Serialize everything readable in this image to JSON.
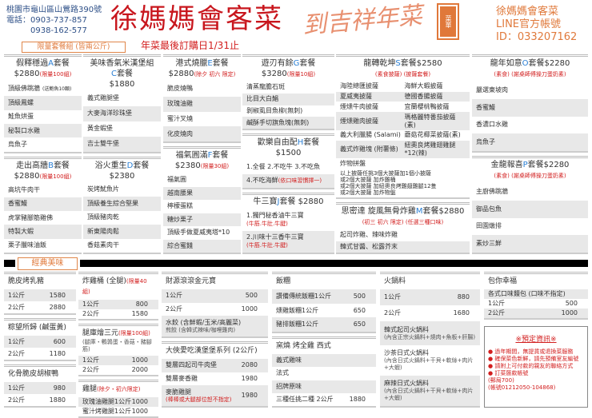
{
  "header": {
    "address": "桃園市龜山區山鶯路390號",
    "phone_label": "電話：0903-737-857",
    "phone2": "0938-162-577",
    "brand": "徐媽媽會客菜",
    "deadline": "年菜最後訂購日1/31止",
    "calligraphy": "到吉祥年菜",
    "stamp": "菜單",
    "line_name": "徐媽媽會客菜",
    "line_label": "LINE官方帳號",
    "line_id": "ID：033207162",
    "set_tag": "限量套餐組 (皆兩公斤)",
    "classic_tag": "經典美味"
  },
  "colors": {
    "brand_red": "#c8161d",
    "letter_blue": "#2a7fd4",
    "accent_orange": "#e07a3c"
  },
  "top_columns": [
    [
      {
        "pre": "假釋穩過",
        "letter": "A",
        "post": "套餐",
        "price": "$2880",
        "note": "(限量100組)",
        "rows": [
          [
            "頂級佛跳牆",
            "(送鮑魚10顆)"
          ],
          [
            "頂級鳳螺"
          ],
          [
            "鮭魚烘蛋"
          ],
          [
            "秘製口水雞"
          ],
          [
            "烏魚子"
          ]
        ]
      },
      {
        "pre": "走出高牆",
        "letter": "B",
        "post": "套餐",
        "price": "$2880",
        "note": "(限量100組)",
        "rows": [
          [
            "高坑牛肉干"
          ],
          [
            "香蜜鰻"
          ],
          [
            "虎掌豬腳筋雞佛"
          ],
          [
            "特製大蝦"
          ],
          [
            "栗子臘味油飯"
          ]
        ]
      }
    ],
    [
      {
        "top": "美味香氣米漢堡組",
        "pre": "",
        "letter": "C",
        "post": "套餐",
        "price": "$1880",
        "rows": [
          [
            "義式雞腿堡"
          ],
          [
            "大麥海洋珍珠堡"
          ],
          [
            "黃金蝦堡"
          ],
          [
            "吉士雙牛堡"
          ]
        ]
      },
      {
        "pre": "浴火重生",
        "letter": "D",
        "post": "套餐",
        "price": "$2380",
        "rows": [
          [
            "炭烤魷魚片"
          ],
          [
            "頂級養生綜合堅果"
          ],
          [
            "頂級豬肉乾"
          ],
          [
            "新東陽肉鬆"
          ],
          [
            "香菇素肉干"
          ]
        ]
      }
    ],
    [
      {
        "pre": "港式燒臘",
        "letter": "E",
        "post": "套餐",
        "price": "$2880",
        "note": "(除夕 初六 限定)",
        "rows": [
          [
            "脆皮燒鴨"
          ],
          [
            "玫瑰油雞"
          ],
          [
            "蜜汁叉燒"
          ],
          [
            "化皮燒肉"
          ]
        ]
      },
      {
        "pre": "福氣圓滿",
        "letter": "F",
        "post": "套餐",
        "price": "$2380",
        "note": "(限量30組)",
        "rows": [
          [
            "福氣圓"
          ],
          [
            "越南腰果"
          ],
          [
            "檸檬蛋糕"
          ],
          [
            "糖炒栗子"
          ],
          [
            "頂級手做夏威夷塔*10"
          ],
          [
            "綜合蜜餞"
          ]
        ]
      }
    ],
    [
      {
        "pre": "遊刃有餘",
        "letter": "G",
        "post": "套餐",
        "price": "$3280",
        "note": "(限量10組)",
        "rows": [
          [
            "清蒸龍膽石斑"
          ],
          [
            "比目大白鯧"
          ],
          [
            "剝椒虱目魚柳(無刺)"
          ],
          [
            "鹹酥手切旗魚塊(無刺)"
          ]
        ]
      },
      {
        "pre": "歡樂自由配",
        "letter": "H",
        "post": "套餐",
        "price": "$1500",
        "rows": [
          [
            "1.全餐 2.不吃牛 3.不吃魚"
          ],
          [
            "4.不吃海鮮",
            "(依口味習慣擇一)"
          ]
        ]
      },
      {
        "pre": "牛三寶",
        "letter": "J",
        "post": "套餐 $2880",
        "rows": [
          [
            "1.獨門秘香滷牛三寶",
            "(牛筋.牛肚.牛腱)"
          ],
          [
            "2.川味十三香牛三寶",
            "(牛筋.牛肚.牛腱)"
          ]
        ]
      }
    ],
    [
      {
        "pre": "龍轉乾坤",
        "letter": "S",
        "post": "套餐$2580",
        "note": "(素食披薩) (披薩套餐)",
        "rows": [
          [
            "海陸總匯披薩",
            "海鮮大蝦披薩"
          ],
          [
            "夏威夷披薩",
            "德國香腸披薩"
          ],
          [
            "煙燻牛肉披薩",
            "宜蘭櫻桃鴨披薩"
          ],
          [
            "煙燻雞肉披薩",
            "瑪格麗特番茄披薩(素)"
          ],
          [
            "義大利臘腸 (Salami)",
            "蘑菇花椰菜披薩(素)"
          ],
          [
            "義式炸雞塊 (附薯條)",
            "紐奧良烤雞翅雞腿*12(辣)"
          ],
          [
            "炸物拼盤"
          ]
        ],
        "text": [
          "以上披薩任挑3個大披薩加1個小披薩",
          "或2個大披薩 加炸雞桶",
          "或2個大披薩 加紐奧良烤雞翅雞腿12隻",
          "或2個大披薩 加炸物盤"
        ]
      },
      {
        "pre": "思密達 旋風無骨炸雞",
        "letter": "M",
        "post": "套餐$2880",
        "note": "(初三 初六 限定) (任選三種口味)",
        "rows": [
          [
            "起司炸雞、辣味炸雞"
          ],
          [
            "韓式甘醬、松露芥末"
          ]
        ]
      }
    ],
    [
      {
        "pre": "龍年如意",
        "letter": "O",
        "post": "套餐$2280",
        "note": "(素食) (謝桌師傅操刀蛋奶素)",
        "rows": [
          [
            "嚴選東坡肉"
          ],
          [
            "香蜜鰻"
          ],
          [
            "香濃口水雞"
          ],
          [
            "烏魚子"
          ]
        ]
      },
      {
        "pre": "金龍報喜",
        "letter": "P",
        "post": "套餐$2280",
        "note": "(素食) (謝桌師傅操刀蛋奶素)",
        "rows": [
          [
            "主廚佛跳牆"
          ],
          [
            "御品包魚"
          ],
          [
            "田園燉排"
          ],
          [
            "素炒三鮮"
          ]
        ]
      }
    ]
  ],
  "bottom_columns": [
    [
      {
        "title": "脆皮烤乳豬",
        "rows": [
          [
            "1公斤",
            "1580"
          ],
          [
            "2公斤",
            "2880"
          ]
        ]
      },
      {
        "title": "粽望所歸 (鹹蛋黃)",
        "rows": [
          [
            "1公斤",
            "600"
          ],
          [
            "2公斤",
            "1180"
          ]
        ]
      },
      {
        "title": "化骨脆皮胡椒鴨",
        "rows": [
          [
            "1公斤",
            "980"
          ],
          [
            "2公斤",
            "1880"
          ]
        ]
      }
    ],
    [
      {
        "title": "炸雞桶 (全腿)",
        "note": "(限量40組)",
        "rows": [
          [
            "1公斤",
            "800"
          ],
          [
            "2公斤",
            "1580"
          ]
        ]
      },
      {
        "title": "腿庫燴三元",
        "note": "(限量100組)",
        "sub": "(腿庫・鵪鶉蛋・香菇・豬腳筋)",
        "rows": [
          [
            "1公斤",
            "1000"
          ],
          [
            "2公斤",
            "2000"
          ]
        ]
      },
      {
        "title": "雞腿",
        "note": "(除夕・初六限定)",
        "rows": [
          [
            "玫瑰油雞腿1公斤",
            "1000"
          ],
          [
            "蜜汁烤雞腿1公斤",
            "1000"
          ]
        ]
      }
    ],
    [
      {
        "title": "財源滾滾金元寶",
        "rows": [
          [
            "1公斤",
            "500"
          ],
          [
            "2公斤",
            "1000"
          ],
          [
            "水餃 (含鮮蝦/玉米/高麗菜)",
            "",
            "煎餃 (含韓式辣味/咖哩雞肉)"
          ]
        ]
      },
      {
        "title": "大俠愛吃漢堡堡系列 (2公斤)",
        "rows": [
          [
            "雙層四起司牛肉堡",
            "2080"
          ],
          [
            "雙層麥香雞",
            "1980"
          ],
          [
            "麥脆雞腿",
            "1980",
            "(棒棒或大腿部位恕不指定)"
          ]
        ]
      }
    ],
    [
      {
        "title": "飯糰",
        "rows": [
          [
            "讚備傳統飯糰1公斤",
            "500"
          ],
          [
            "燻雞飯糰1公斤",
            "650"
          ],
          [
            "豬排飯糰1公斤",
            "650"
          ]
        ]
      },
      {
        "title": "窯燒 烤全雞 西式",
        "rows": [
          [
            "義式雞味"
          ],
          [
            "法式"
          ],
          [
            "招牌原味"
          ],
          [
            "三種任挑二種 2公斤",
            "1880"
          ]
        ]
      }
    ],
    [
      {
        "title": "火鍋料",
        "rows": [
          [
            "1公斤",
            "880"
          ],
          [
            "2公斤",
            "1680"
          ],
          [
            "韓式起司火鍋料",
            "",
            "(內含正宗火鍋料+燒肉+魚板+肝腸)"
          ],
          [
            "沙茶日式火鍋料",
            "",
            "(內含日式火鍋料+干貝+軟絲+肉片+大蝦)"
          ],
          [
            "麻辣日式火鍋料",
            "",
            "(內含日式火鍋料+干貝+軟絲+肉片+大蝦)"
          ]
        ]
      }
    ],
    [
      {
        "title": "包你幸福",
        "rows": [
          [
            "各式口味饅包 (口味不指定)"
          ],
          [
            "1公斤",
            "500"
          ],
          [
            "2公斤",
            "1000"
          ]
        ]
      }
    ]
  ],
  "reservation": {
    "title": "※預定資訊※",
    "items": [
      "過年期間，無提貨或退換菜服務",
      "確保菜色新鮮，請先預備室友編號",
      "請附上可付款的親友的聯絡方式",
      "訂菜匯款帳號"
    ],
    "post": "(郵局700)",
    "account": "(帳號01212050-104868)"
  }
}
